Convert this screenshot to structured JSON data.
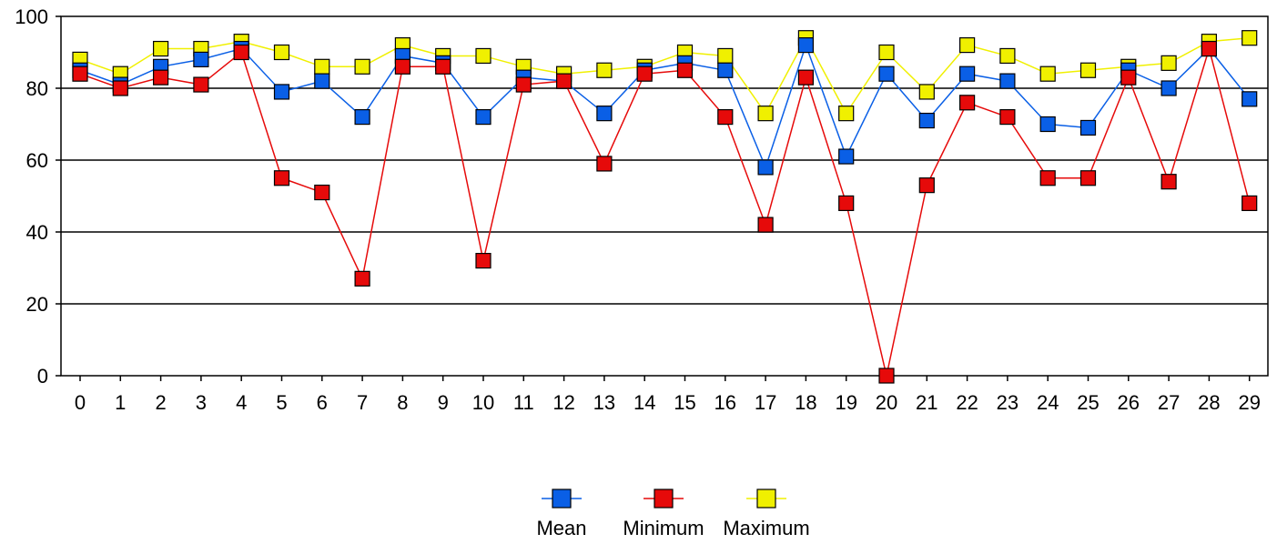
{
  "chart_data": {
    "type": "line",
    "title": "",
    "xlabel": "",
    "ylabel": "",
    "x": [
      0,
      1,
      2,
      3,
      4,
      5,
      6,
      7,
      8,
      9,
      10,
      11,
      12,
      13,
      14,
      15,
      16,
      17,
      18,
      19,
      20,
      21,
      22,
      23,
      24,
      25,
      26,
      27,
      28,
      29
    ],
    "ylim": [
      0,
      100
    ],
    "yticks": [
      0,
      20,
      40,
      60,
      80,
      100
    ],
    "grid": "horizontal",
    "legend_position": "bottom-center",
    "series": [
      {
        "name": "Mean",
        "color": "#0a5fe6",
        "values": [
          85,
          81,
          86,
          88,
          91,
          79,
          82,
          72,
          89,
          87,
          72,
          83,
          82,
          73,
          85,
          87,
          85,
          58,
          92,
          61,
          84,
          71,
          84,
          82,
          70,
          69,
          85,
          80,
          91,
          77
        ]
      },
      {
        "name": "Minimum",
        "color": "#e60a0a",
        "values": [
          84,
          80,
          83,
          81,
          90,
          55,
          51,
          27,
          86,
          86,
          32,
          81,
          82,
          59,
          84,
          85,
          72,
          42,
          83,
          48,
          0,
          53,
          76,
          72,
          55,
          55,
          83,
          54,
          91,
          48
        ]
      },
      {
        "name": "Maximum",
        "color": "#f0f000",
        "values": [
          88,
          84,
          91,
          91,
          93,
          90,
          86,
          86,
          92,
          89,
          89,
          86,
          84,
          85,
          86,
          90,
          89,
          73,
          94,
          73,
          90,
          79,
          92,
          89,
          84,
          85,
          86,
          87,
          93,
          94
        ]
      }
    ]
  }
}
